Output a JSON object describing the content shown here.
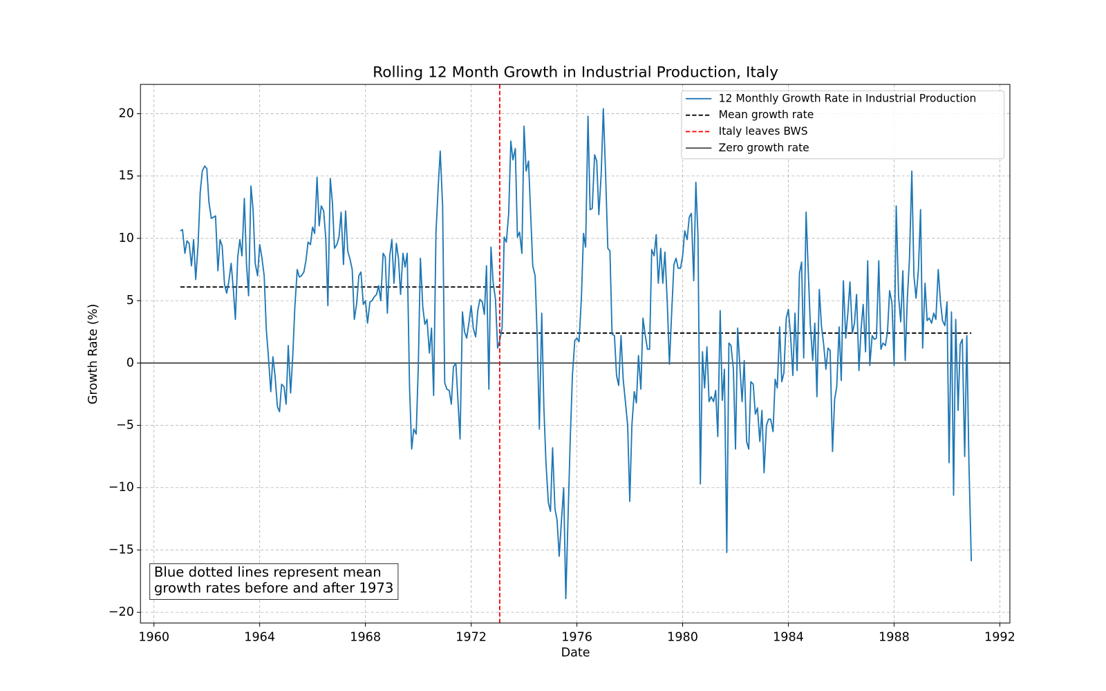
{
  "chart_data": {
    "type": "line",
    "title": "Rolling 12 Month Growth in Industrial Production, Italy",
    "xlabel": "Date",
    "ylabel": "Growth Rate (%)",
    "xlim": [
      1959.49,
      1992.38
    ],
    "ylim": [
      -20.86,
      22.35
    ],
    "xticks": [
      1960,
      1964,
      1968,
      1972,
      1976,
      1980,
      1984,
      1988,
      1992
    ],
    "yticks": [
      {
        "value": -20,
        "label": "−20"
      },
      {
        "value": -15,
        "label": "−15"
      },
      {
        "value": -10,
        "label": "−10"
      },
      {
        "value": -5,
        "label": "−5"
      },
      0,
      5,
      10,
      15,
      20
    ],
    "grid": true,
    "legend": "upper right",
    "x": [
      1961.0,
      1961.08,
      1961.17,
      1961.25,
      1961.33,
      1961.42,
      1961.5,
      1961.58,
      1961.67,
      1961.75,
      1961.83,
      1961.92,
      1962.0,
      1962.08,
      1962.17,
      1962.25,
      1962.33,
      1962.42,
      1962.5,
      1962.58,
      1962.67,
      1962.75,
      1962.83,
      1962.92,
      1963.0,
      1963.08,
      1963.17,
      1963.25,
      1963.33,
      1963.42,
      1963.5,
      1963.58,
      1963.67,
      1963.75,
      1963.83,
      1963.92,
      1964.0,
      1964.08,
      1964.17,
      1964.25,
      1964.33,
      1964.42,
      1964.5,
      1964.58,
      1964.67,
      1964.75,
      1964.83,
      1964.92,
      1965.0,
      1965.08,
      1965.17,
      1965.25,
      1965.33,
      1965.42,
      1965.5,
      1965.58,
      1965.67,
      1965.75,
      1965.83,
      1965.92,
      1966.0,
      1966.08,
      1966.17,
      1966.25,
      1966.33,
      1966.42,
      1966.5,
      1966.58,
      1966.67,
      1966.75,
      1966.83,
      1966.92,
      1967.0,
      1967.08,
      1967.17,
      1967.25,
      1967.33,
      1967.42,
      1967.5,
      1967.58,
      1967.67,
      1967.75,
      1967.83,
      1967.92,
      1968.0,
      1968.08,
      1968.17,
      1968.25,
      1968.33,
      1968.42,
      1968.5,
      1968.58,
      1968.67,
      1968.75,
      1968.83,
      1968.92,
      1969.0,
      1969.08,
      1969.17,
      1969.25,
      1969.33,
      1969.42,
      1969.5,
      1969.58,
      1969.67,
      1969.75,
      1969.83,
      1969.92,
      1970.0,
      1970.08,
      1970.17,
      1970.25,
      1970.33,
      1970.42,
      1970.5,
      1970.58,
      1970.67,
      1970.75,
      1970.83,
      1970.92,
      1971.0,
      1971.08,
      1971.17,
      1971.25,
      1971.33,
      1971.42,
      1971.5,
      1971.58,
      1971.67,
      1971.75,
      1971.83,
      1971.92,
      1972.0,
      1972.08,
      1972.17,
      1972.25,
      1972.33,
      1972.42,
      1972.5,
      1972.58,
      1972.67,
      1972.75,
      1972.83,
      1972.92,
      1973.0,
      1973.08,
      1973.17,
      1973.25,
      1973.33,
      1973.42,
      1973.5,
      1973.58,
      1973.67,
      1973.75,
      1973.83,
      1973.92,
      1974.0,
      1974.08,
      1974.17,
      1974.25,
      1974.33,
      1974.42,
      1974.5,
      1974.58,
      1974.67,
      1974.75,
      1974.83,
      1974.92,
      1975.0,
      1975.08,
      1975.17,
      1975.25,
      1975.33,
      1975.42,
      1975.5,
      1975.58,
      1975.67,
      1975.75,
      1975.83,
      1975.92,
      1976.0,
      1976.08,
      1976.17,
      1976.25,
      1976.33,
      1976.42,
      1976.5,
      1976.58,
      1976.67,
      1976.75,
      1976.83,
      1976.92,
      1977.0,
      1977.08,
      1977.17,
      1977.25,
      1977.33,
      1977.42,
      1977.5,
      1977.58,
      1977.67,
      1977.75,
      1977.83,
      1977.92,
      1978.0,
      1978.08,
      1978.17,
      1978.25,
      1978.33,
      1978.42,
      1978.5,
      1978.58,
      1978.67,
      1978.75,
      1978.83,
      1978.92,
      1979.0,
      1979.08,
      1979.17,
      1979.25,
      1979.33,
      1979.42,
      1979.5,
      1979.58,
      1979.67,
      1979.75,
      1979.83,
      1979.92,
      1980.0,
      1980.08,
      1980.17,
      1980.25,
      1980.33,
      1980.42,
      1980.5,
      1980.58,
      1980.67,
      1980.75,
      1980.83,
      1980.92,
      1981.0,
      1981.08,
      1981.17,
      1981.25,
      1981.33,
      1981.42,
      1981.5,
      1981.58,
      1981.67,
      1981.75,
      1981.83,
      1981.92,
      1982.0,
      1982.08,
      1982.17,
      1982.25,
      1982.33,
      1982.42,
      1982.5,
      1982.58,
      1982.67,
      1982.75,
      1982.83,
      1982.92,
      1983.0,
      1983.08,
      1983.17,
      1983.25,
      1983.33,
      1983.42,
      1983.5,
      1983.58,
      1983.67,
      1983.75,
      1983.83,
      1983.92,
      1984.0,
      1984.08,
      1984.17,
      1984.25,
      1984.33,
      1984.42,
      1984.5,
      1984.58,
      1984.67,
      1984.75,
      1984.83,
      1984.92,
      1985.0,
      1985.08,
      1985.17,
      1985.25,
      1985.33,
      1985.42,
      1985.5,
      1985.58,
      1985.67,
      1985.75,
      1985.83,
      1985.92,
      1986.0,
      1986.08,
      1986.17,
      1986.25,
      1986.33,
      1986.42,
      1986.5,
      1986.58,
      1986.67,
      1986.75,
      1986.83,
      1986.92,
      1987.0,
      1987.08,
      1987.17,
      1987.25,
      1987.33,
      1987.42,
      1987.5,
      1987.58,
      1987.67,
      1987.75,
      1987.83,
      1987.92,
      1988.0,
      1988.08,
      1988.17,
      1988.25,
      1988.33,
      1988.42,
      1988.5,
      1988.58,
      1988.67,
      1988.75,
      1988.83,
      1988.92,
      1989.0,
      1989.08,
      1989.17,
      1989.25,
      1989.33,
      1989.42,
      1989.5,
      1989.58,
      1989.67,
      1989.75,
      1989.83,
      1989.92,
      1990.0,
      1990.08,
      1990.17,
      1990.25,
      1990.33,
      1990.42,
      1990.5,
      1990.58,
      1990.67,
      1990.75,
      1990.83,
      1990.92
    ],
    "series": [
      {
        "name": "12 Monthly Growth Rate in Industrial Production",
        "color": "#1f77b4",
        "values": [
          10.6,
          10.7,
          8.8,
          9.8,
          9.6,
          7.8,
          9.9,
          6.7,
          9.5,
          13.7,
          15.4,
          15.8,
          15.6,
          12.9,
          11.6,
          11.7,
          11.8,
          7.4,
          9.9,
          9.4,
          6.3,
          5.6,
          6.5,
          8.0,
          6.0,
          3.5,
          8.5,
          9.9,
          8.6,
          13.2,
          8.0,
          5.4,
          14.2,
          12.3,
          8.0,
          7.0,
          9.5,
          8.5,
          7.0,
          2.7,
          0.5,
          -2.3,
          0.5,
          -1.0,
          -3.5,
          -3.9,
          -1.7,
          -1.9,
          -3.3,
          1.4,
          -2.4,
          0.5,
          4.5,
          7.5,
          6.9,
          7.0,
          7.3,
          8.2,
          9.7,
          9.5,
          10.9,
          10.4,
          14.9,
          11.0,
          12.6,
          12.2,
          10.0,
          4.6,
          14.8,
          12.9,
          9.2,
          9.5,
          10.1,
          12.1,
          7.9,
          12.2,
          9.0,
          8.3,
          7.5,
          3.5,
          4.8,
          7.0,
          7.3,
          4.7,
          5.0,
          3.2,
          4.9,
          5.0,
          5.3,
          5.5,
          6.2,
          5.0,
          8.8,
          8.5,
          4.0,
          8.6,
          9.9,
          6.4,
          9.6,
          8.4,
          5.5,
          8.8,
          7.7,
          8.8,
          -2.0,
          -6.9,
          -5.3,
          -5.7,
          -0.3,
          8.4,
          4.5,
          3.1,
          3.5,
          0.8,
          2.8,
          -2.6,
          10.5,
          14.0,
          17.0,
          12.6,
          -1.6,
          -2.1,
          -2.2,
          -3.3,
          -0.3,
          0.0,
          -3.0,
          -6.1,
          4.1,
          2.5,
          2.0,
          3.3,
          4.6,
          2.8,
          2.1,
          4.2,
          5.1,
          4.9,
          3.9,
          7.8,
          -2.1,
          9.3,
          6.5,
          5.1,
          1.2,
          1.8,
          2.8,
          10.1,
          9.7,
          12.0,
          17.8,
          16.3,
          17.2,
          10.1,
          10.5,
          8.8,
          19.0,
          15.4,
          16.2,
          12.0,
          7.8,
          7.0,
          2.0,
          -5.3,
          4.0,
          -3.5,
          -8.0,
          -11.2,
          -11.9,
          -6.8,
          -11.7,
          -12.6,
          -15.5,
          -12.5,
          -10.0,
          -18.9,
          -12.0,
          -6.0,
          -1.0,
          1.8,
          2.0,
          1.7,
          5.2,
          10.4,
          9.3,
          19.8,
          12.3,
          12.4,
          16.7,
          16.2,
          11.9,
          15.2,
          20.4,
          15.5,
          9.2,
          9.0,
          2.3,
          2.2,
          -1.0,
          -1.8,
          2.2,
          -1.3,
          -3.0,
          -5.0,
          -11.1,
          -5.0,
          -2.3,
          -3.2,
          0.6,
          -2.1,
          3.6,
          2.3,
          1.1,
          1.1,
          9.1,
          8.6,
          10.3,
          6.4,
          9.2,
          6.4,
          8.9,
          4.8,
          -0.1,
          3.8,
          7.9,
          8.4,
          7.6,
          7.6,
          8.6,
          10.6,
          9.9,
          11.7,
          12.0,
          6.6,
          14.5,
          10.2,
          -9.7,
          0.9,
          -2.0,
          1.3,
          -3.1,
          -2.7,
          -3.1,
          -2.2,
          -5.9,
          4.2,
          -3.0,
          -0.5,
          -15.2,
          1.6,
          1.4,
          -0.5,
          -6.9,
          2.8,
          -0.4,
          -3.1,
          0.2,
          -6.3,
          -6.9,
          -1.5,
          -1.7,
          -4.1,
          -3.6,
          -6.3,
          -3.8,
          -8.8,
          -5.0,
          -4.5,
          -4.5,
          -5.5,
          -1.3,
          -2.0,
          2.9,
          -1.5,
          -0.8,
          3.6,
          4.3,
          2.3,
          -1.0,
          4.0,
          -0.6,
          7.2,
          8.1,
          0.4,
          12.1,
          7.5,
          3.1,
          0.2,
          3.2,
          -2.7,
          5.9,
          3.0,
          1.6,
          -0.5,
          1.2,
          1.0,
          -7.1,
          -2.9,
          -1.9,
          2.9,
          -1.4,
          6.6,
          2.0,
          4.0,
          6.5,
          2.4,
          3.2,
          5.5,
          -0.6,
          2.7,
          4.7,
          0.9,
          8.2,
          -0.2,
          2.2,
          1.9,
          2.0,
          8.2,
          1.1,
          1.6,
          1.4,
          2.5,
          5.8,
          4.8,
          -0.2,
          12.6,
          5.3,
          3.3,
          7.4,
          0.2,
          5.2,
          8.3,
          15.4,
          7.0,
          5.2,
          7.5,
          12.3,
          1.2,
          6.4,
          3.4,
          3.6,
          3.2,
          4.0,
          3.5,
          7.5,
          5.0,
          3.4,
          3.0,
          4.9,
          -8.0,
          4.1,
          -10.6,
          3.5,
          -3.8,
          1.5,
          1.9,
          -7.5,
          2.2,
          -8.0,
          -15.9
        ]
      }
    ],
    "mean_line": {
      "name": "Mean growth rate",
      "color": "#000000",
      "segments": [
        {
          "value": 6.1,
          "x": [
            1961.0,
            1973.08
          ]
        },
        {
          "value": 2.4,
          "x": [
            1973.08,
            1990.92
          ]
        }
      ]
    },
    "event_line": {
      "name": "Italy leaves BWS",
      "color": "#ff0000",
      "x": 1973.08
    },
    "zero_line": {
      "name": "Zero growth rate",
      "color": "#000000",
      "value": 0
    },
    "annotation": [
      "Blue dotted lines represent mean",
      "growth rates before and after 1973"
    ]
  }
}
